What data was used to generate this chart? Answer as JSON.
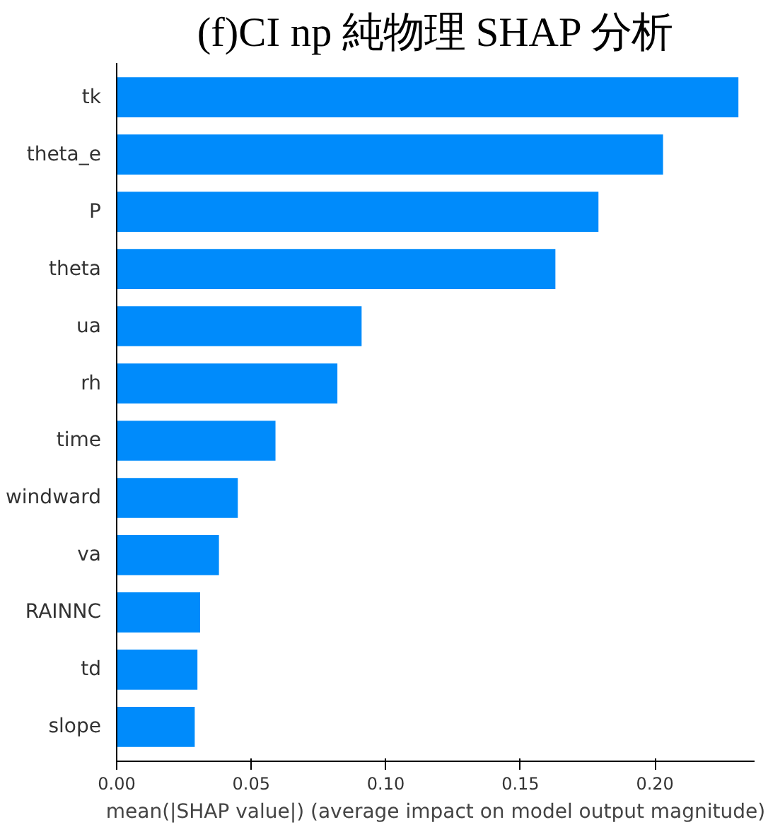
{
  "chart_data": {
    "type": "bar",
    "orientation": "horizontal",
    "title": "(f)CI np 純物理 SHAP 分析",
    "xlabel": "mean(|SHAP value|) (average impact on model output magnitude)",
    "categories": [
      "tk",
      "theta_e",
      "P",
      "theta",
      "ua",
      "rh",
      "time",
      "windward",
      "va",
      "RAINNC",
      "td",
      "slope"
    ],
    "values": [
      0.231,
      0.203,
      0.179,
      0.163,
      0.091,
      0.082,
      0.059,
      0.045,
      0.038,
      0.031,
      0.03,
      0.029
    ],
    "color": "#008bfb",
    "xlim": [
      0,
      0.237
    ],
    "xticks": [
      {
        "value": 0,
        "label": "0.00"
      },
      {
        "value": 0.05,
        "label": "0.05"
      },
      {
        "value": 0.1,
        "label": "0.10"
      },
      {
        "value": 0.15,
        "label": "0.15"
      },
      {
        "value": 0.2,
        "label": "0.20"
      }
    ],
    "grid": false
  }
}
